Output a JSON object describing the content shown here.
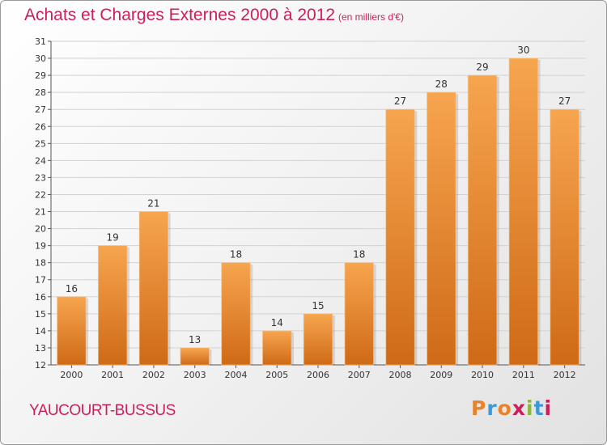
{
  "header": {
    "title": "Achats et Charges Externes 2000 à 2012",
    "subtitle": "(en milliers d'€)"
  },
  "footer": {
    "commune": "YAUCOURT-BUSSUS",
    "logo_text": "Proxiti",
    "logo_colors": [
      "#e8832b",
      "#3a9ad9",
      "#e8832b",
      "#cc1f5a",
      "#8ab83a",
      "#3a9ad9",
      "#cc1f5a"
    ]
  },
  "colors": {
    "accent": "#cc1f5a",
    "bar_top": "#f7a54f",
    "bar_bottom": "#cf6a16"
  },
  "chart_data": {
    "type": "bar",
    "title": "Achats et Charges Externes 2000 à 2012",
    "subtitle": "(en milliers d'€)",
    "categories": [
      "2000",
      "2001",
      "2002",
      "2003",
      "2004",
      "2005",
      "2006",
      "2007",
      "2008",
      "2009",
      "2010",
      "2011",
      "2012"
    ],
    "values": [
      16,
      19,
      21,
      13,
      18,
      14,
      15,
      18,
      27,
      28,
      29,
      30,
      27
    ],
    "ylim": [
      12,
      31
    ],
    "yticks": [
      12,
      13,
      14,
      15,
      16,
      17,
      18,
      19,
      20,
      21,
      22,
      23,
      24,
      25,
      26,
      27,
      28,
      29,
      30,
      31
    ],
    "grid": true,
    "xlabel": "",
    "ylabel": ""
  }
}
